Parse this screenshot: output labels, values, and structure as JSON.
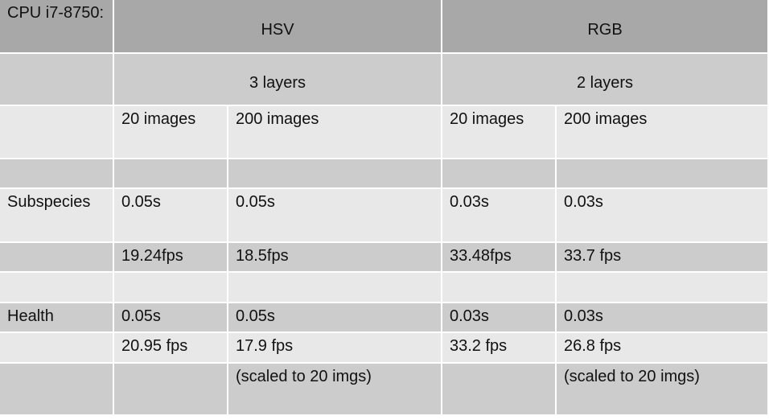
{
  "table": {
    "corner": "CPU i7-8750:",
    "groups": {
      "hsv": "HSV",
      "rgb": "RGB"
    },
    "layers": {
      "hsv": "3 layers",
      "rgb": "2 layers"
    },
    "sizes": {
      "hsv_small": "20 images",
      "hsv_large": "200 images",
      "rgb_small": "20 images",
      "rgb_large": "200 images"
    },
    "subspecies": {
      "label": "Subspecies",
      "time": [
        "0.05s",
        "0.05s",
        "0.03s",
        "0.03s"
      ],
      "fps": [
        "19.24fps",
        "18.5fps",
        "33.48fps",
        "33.7 fps"
      ]
    },
    "health": {
      "label": "Health",
      "time": [
        "0.05s",
        "0.05s",
        "0.03s",
        "0.03s"
      ],
      "fps": [
        "20.95 fps",
        "17.9 fps",
        "33.2 fps",
        "26.8 fps"
      ],
      "notes": [
        "",
        "(scaled to 20 imgs)",
        "",
        "(scaled to 20 imgs)"
      ]
    }
  }
}
